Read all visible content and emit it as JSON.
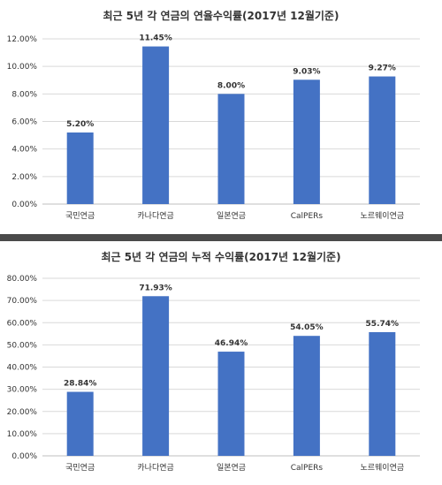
{
  "chart_data": [
    {
      "type": "bar",
      "title": "최근 5년 각 연금의 연율수익률(2017년 12월기준)",
      "categories": [
        "국민연금",
        "카나다연금",
        "일본연금",
        "CalPERs",
        "노르웨이연금"
      ],
      "values": [
        5.2,
        11.45,
        8.0,
        9.03,
        9.27
      ],
      "data_labels": [
        "5.20%",
        "11.45%",
        "8.00%",
        "9.03%",
        "9.27%"
      ],
      "ylim": [
        0,
        12
      ],
      "yticks": [
        "0.00%",
        "2.00%",
        "4.00%",
        "6.00%",
        "8.00%",
        "10.00%",
        "12.00%"
      ],
      "grid": true,
      "legend": "none",
      "bar_color": "#4472c4"
    },
    {
      "type": "bar",
      "title": "최근 5년 각 연금의 누적 수익률(2017년 12월기준)",
      "categories": [
        "국민연금",
        "카나다연금",
        "일본연금",
        "CalPERs",
        "노르웨이연금"
      ],
      "values": [
        28.84,
        71.93,
        46.94,
        54.05,
        55.74
      ],
      "data_labels": [
        "28.84%",
        "71.93%",
        "46.94%",
        "54.05%",
        "55.74%"
      ],
      "ylim": [
        0,
        80
      ],
      "yticks": [
        "0.00%",
        "10.00%",
        "20.00%",
        "30.00%",
        "40.00%",
        "50.00%",
        "60.00%",
        "70.00%",
        "80.00%"
      ],
      "grid": true,
      "legend": "none",
      "bar_color": "#4472c4"
    }
  ]
}
